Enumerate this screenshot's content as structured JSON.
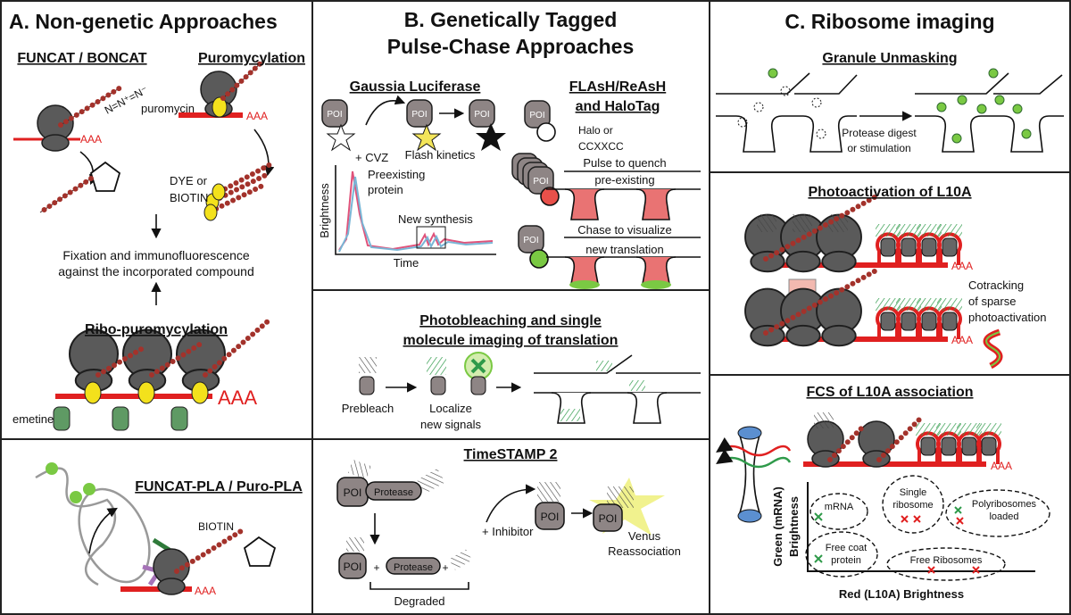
{
  "panel_a": {
    "title": "A. Non-genetic Approaches",
    "funcat": {
      "heading": "FUNCAT / BONCAT",
      "azide": "N=N⁺=N⁻",
      "tail": "AAA",
      "dye": [
        "DYE or",
        "BIOTIN"
      ]
    },
    "puromycylation": {
      "heading": "Puromycylation",
      "drug": "puromycin",
      "tail": "AAA"
    },
    "fixation": [
      "Fixation and immunofluorescence",
      "against the incorporated compound"
    ],
    "ribo_puromycylation": {
      "heading": "Ribo-puromycylation",
      "tail": "AAA",
      "drug": "emetine"
    },
    "pla": {
      "heading": "FUNCAT-PLA / Puro-PLA",
      "tag": "BIOTIN",
      "tail": "AAA"
    }
  },
  "panel_b": {
    "title": [
      "B. Genetically Tagged",
      "Pulse-Chase Approaches"
    ],
    "gaussia": {
      "heading": "Gaussia Luciferase",
      "poi": [
        "POI",
        "POI",
        "POI"
      ],
      "substrate": "+ CVZ",
      "kinetics": "Flash kinetics",
      "y_axis": "Brightness",
      "x_axis": "Time",
      "preexisting": [
        "Preexisting",
        "protein"
      ],
      "new_synthesis": "New synthesis"
    },
    "flash": {
      "heading": [
        "FLAsH/ReAsH",
        "and HaloTag"
      ],
      "poi": [
        "POI",
        "POI",
        "POI"
      ],
      "tag": [
        "Halo or",
        "CCXXCC"
      ],
      "pulse": [
        "Pulse to quench",
        "pre-existing"
      ],
      "chase": [
        "Chase to visualize",
        "new translation"
      ]
    },
    "photobleaching": {
      "heading": [
        "Photobleaching and single",
        "molecule imaging of translation"
      ],
      "prebleach": "Prebleach",
      "localize": [
        "Localize",
        "new signals"
      ]
    },
    "timestamp": {
      "heading": "TimeSTAMP 2",
      "protease": [
        "Protease",
        "Protease"
      ],
      "poi": [
        "POI",
        "POI",
        "POI",
        "POI"
      ],
      "inhibitor": "+ Inhibitor",
      "plus": [
        "+",
        "+"
      ],
      "venus": [
        "Venus",
        "Reassociation"
      ],
      "degraded": "Degraded"
    }
  },
  "panel_c": {
    "title": "C. Ribosome imaging",
    "granule": {
      "heading": "Granule Unmasking",
      "step": [
        "Protease digest",
        "or stimulation"
      ]
    },
    "photoactivation": {
      "heading": "Photoactivation of L10A",
      "tail": [
        "AAA",
        "AAA"
      ],
      "cotracking": [
        "Cotracking",
        "of sparse",
        "photoactivation"
      ]
    },
    "fcs": {
      "heading": "FCS of L10A association",
      "tail": "AAA",
      "y_axis": [
        "Green (mRNA)",
        "Brightness"
      ],
      "x_axis": "Red (L10A) Brightness",
      "populations": {
        "mrna": "mRNA",
        "single": [
          "Single",
          "ribosome"
        ],
        "poly": [
          "Polyribosomes",
          "loaded"
        ],
        "coat": [
          "Free coat",
          "protein"
        ],
        "free": "Free Ribosomes"
      }
    }
  }
}
